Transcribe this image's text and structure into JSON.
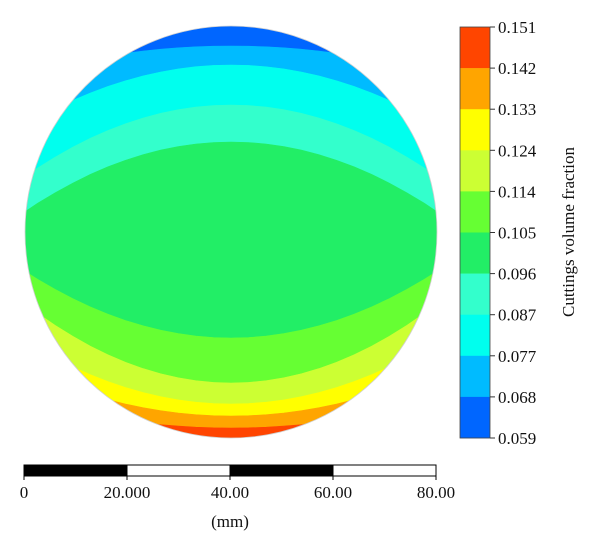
{
  "chart_data": {
    "type": "heatmap",
    "title": "",
    "colorbar": {
      "label": "Cuttings volume fraction",
      "ticks": [
        "0.151",
        "0.142",
        "0.133",
        "0.124",
        "0.114",
        "0.105",
        "0.096",
        "0.087",
        "0.077",
        "0.068",
        "0.059"
      ],
      "colors": [
        "#ff4500",
        "#ffa500",
        "#ffff00",
        "#ccff33",
        "#66ff33",
        "#22ee66",
        "#33ffcc",
        "#00ffee",
        "#00bbff",
        "#0066ff"
      ]
    },
    "scale_bar": {
      "ticks": [
        "0",
        "20.000",
        "40.00",
        "60.00",
        "80.00"
      ],
      "unit": "(mm)"
    },
    "contour_bands": [
      {
        "level_color": "#0066ff"
      },
      {
        "level_color": "#00bbff"
      },
      {
        "level_color": "#00ffee"
      },
      {
        "level_color": "#33ffcc"
      },
      {
        "level_color": "#22ee66"
      },
      {
        "level_color": "#66ff33"
      },
      {
        "level_color": "#ccff33"
      },
      {
        "level_color": "#ffff00"
      },
      {
        "level_color": "#ffa500"
      },
      {
        "level_color": "#ff4500"
      }
    ]
  }
}
